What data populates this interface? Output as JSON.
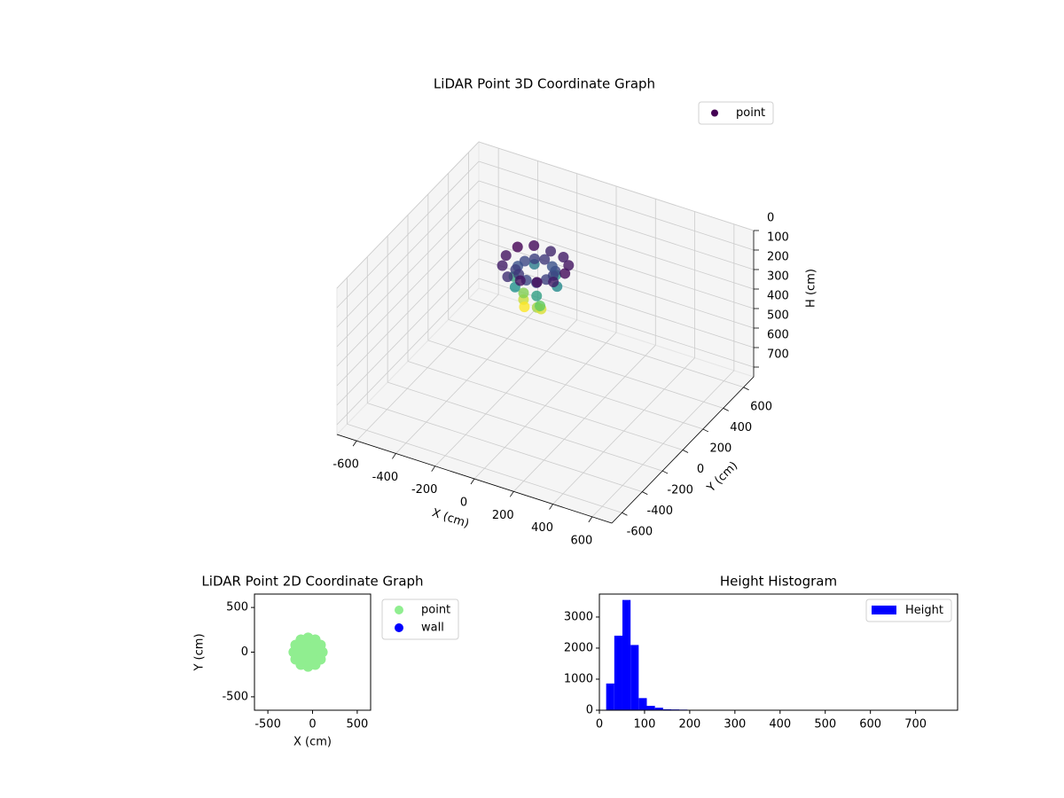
{
  "chart_data": [
    {
      "type": "scatter3d",
      "title": "LiDAR Point 3D Coordinate Graph",
      "xlabel": "X (cm)",
      "ylabel": "Y (cm)",
      "zlabel": "H (cm)",
      "xlim": [
        -700,
        700
      ],
      "ylim": [
        -700,
        700
      ],
      "zlim": [
        0,
        750
      ],
      "z_inverted": true,
      "xticks": [
        -600,
        -400,
        -200,
        0,
        200,
        400,
        600
      ],
      "yticks": [
        -600,
        -400,
        -200,
        0,
        200,
        400,
        600
      ],
      "zticks": [
        0,
        100,
        200,
        300,
        400,
        500,
        600,
        700
      ],
      "colormap": "viridis",
      "legend": "upper right",
      "grid": true,
      "series": [
        {
          "name": "point",
          "color": "#440154",
          "x": [
            -80,
            -60,
            10,
            20,
            -90,
            30,
            60,
            5,
            -105,
            -160,
            -105,
            5,
            40,
            28,
            -5,
            -50,
            -95,
            -128,
            -140,
            -128,
            -95,
            -50,
            -5,
            28,
            100,
            80,
            25,
            -50,
            -125,
            -180,
            -200,
            -180,
            -125,
            -50,
            25,
            80
          ],
          "y": [
            -60,
            -90,
            -100,
            -80,
            -40,
            -110,
            0,
            95,
            95,
            0,
            -95,
            -95,
            0,
            45,
            78,
            90,
            78,
            45,
            0,
            -45,
            -78,
            -90,
            -78,
            -45,
            0,
            75,
            130,
            150,
            130,
            75,
            0,
            -75,
            -130,
            -150,
            -130,
            -75
          ],
          "values": [
            200,
            215,
            190,
            205,
            180,
            170,
            120,
            130,
            110,
            140,
            125,
            135,
            70,
            75,
            80,
            65,
            70,
            75,
            80,
            70,
            65,
            75,
            80,
            70,
            40,
            45,
            50,
            55,
            40,
            35,
            45,
            50,
            60,
            45,
            40,
            50
          ]
        }
      ]
    },
    {
      "type": "scatter",
      "title": "LiDAR Point 2D Coordinate Graph",
      "xlabel": "X (cm)",
      "ylabel": "Y (cm)",
      "xlim": [
        -650,
        650
      ],
      "ylim": [
        -650,
        650
      ],
      "xticks": [
        -500,
        0,
        500
      ],
      "yticks": [
        -500,
        0,
        500
      ],
      "legend": "outside right",
      "series": [
        {
          "name": "point",
          "color": "#90ee90",
          "x": [
            -50,
            30,
            -10,
            -90,
            -130,
            -90,
            -10,
            110,
            89,
            30,
            -50,
            -130,
            -189,
            -210,
            -189,
            -130,
            -50,
            30,
            89
          ],
          "values": [
            0,
            0,
            69,
            69,
            0,
            -69,
            -69,
            0,
            80,
            139,
            160,
            139,
            80,
            0,
            -80,
            -139,
            -160,
            -139,
            -80
          ]
        },
        {
          "name": "wall",
          "color": "#0000ff",
          "x": [],
          "values": []
        }
      ]
    },
    {
      "type": "histogram",
      "title": "Height Histogram",
      "xlim": [
        0,
        793
      ],
      "ylim": [
        0,
        3740
      ],
      "xticks": [
        0,
        100,
        200,
        300,
        400,
        500,
        600,
        700
      ],
      "yticks": [
        0,
        1000,
        2000,
        3000
      ],
      "legend": "upper right",
      "series": [
        {
          "name": "Height",
          "color": "#0000ff",
          "bins": [
            15,
            33,
            51,
            69,
            87,
            105,
            123,
            141,
            159,
            177,
            195,
            213,
            231,
            249,
            267,
            285,
            303,
            321,
            339,
            357,
            375,
            393,
            411,
            429,
            447,
            465,
            483,
            501,
            519,
            537,
            555,
            573,
            591,
            609,
            627,
            645,
            663,
            681,
            699,
            717,
            735,
            753,
            771,
            789
          ],
          "values": [
            860,
            2400,
            3550,
            2100,
            390,
            140,
            80,
            30,
            25,
            20,
            12,
            0,
            0,
            0,
            0,
            0,
            0,
            0,
            0,
            0,
            0,
            0,
            0,
            0,
            0,
            0,
            0,
            0,
            0,
            0,
            0,
            0,
            0,
            0,
            0,
            0,
            0,
            0,
            0,
            0,
            0,
            0,
            1
          ]
        }
      ]
    }
  ]
}
